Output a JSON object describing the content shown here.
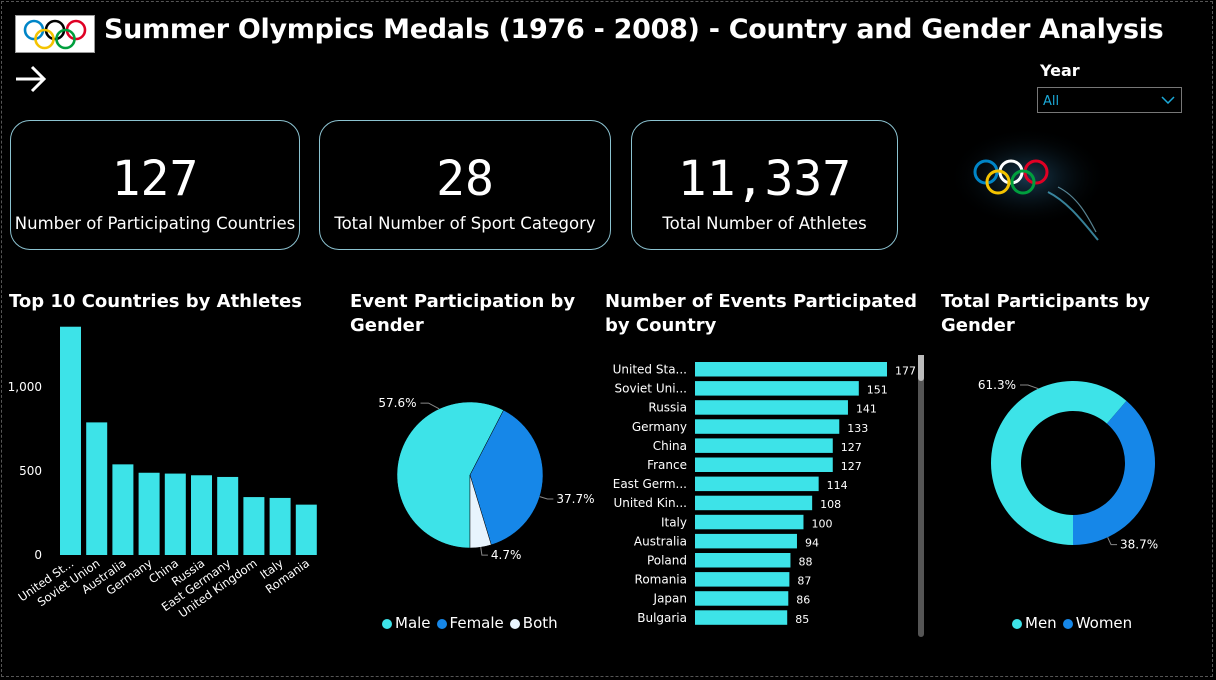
{
  "header": {
    "title": "Summer Olympics Medals (1976 - 2008) - Country and Gender Analysis"
  },
  "filter": {
    "label": "Year",
    "value": "All"
  },
  "kpis": [
    {
      "value": "127",
      "label": "Number of Participating Countries"
    },
    {
      "value": "28",
      "label": "Total Number of Sport Category"
    },
    {
      "value": "11,337",
      "label": "Total Number of Athletes"
    }
  ],
  "colors": {
    "teal": "#3de3e8",
    "blue": "#1687e8",
    "pale": "#e8f4fd",
    "olympic_rings": [
      "#0085c7",
      "#000000",
      "#df0024",
      "#f4c300",
      "#009f3d"
    ]
  },
  "chart_data": [
    {
      "type": "bar",
      "title": "Top 10 Countries by Athletes",
      "categories": [
        "United St...",
        "Soviet Union",
        "Australia",
        "Germany",
        "China",
        "Russia",
        "East Germany",
        "United Kingdom",
        "Italy",
        "Romania"
      ],
      "values": [
        1360,
        790,
        540,
        490,
        485,
        475,
        465,
        345,
        340,
        300
      ],
      "ylim": [
        0,
        1400
      ],
      "yticks": [
        0,
        500,
        1000
      ],
      "ytick_labels": [
        "0",
        "500",
        "1,000"
      ]
    },
    {
      "type": "pie",
      "title": "Event Participation by Gender",
      "categories": [
        "Male",
        "Female",
        "Both"
      ],
      "values": [
        57.6,
        37.7,
        4.7
      ],
      "labels": [
        "57.6%",
        "37.7%",
        "4.7%"
      ],
      "legend": "bottom"
    },
    {
      "type": "bar",
      "orientation": "horizontal",
      "title": "Number of Events Participated by Country",
      "categories": [
        "United Sta...",
        "Soviet Uni...",
        "Russia",
        "Germany",
        "China",
        "France",
        "East Germ...",
        "United Kin...",
        "Italy",
        "Australia",
        "Poland",
        "Romania",
        "Japan",
        "Bulgaria"
      ],
      "values": [
        177,
        151,
        141,
        133,
        127,
        127,
        114,
        108,
        100,
        94,
        88,
        87,
        86,
        85
      ]
    },
    {
      "type": "pie",
      "title": "Total Participants by Gender",
      "categories": [
        "Men",
        "Women"
      ],
      "values": [
        61.3,
        38.7
      ],
      "labels": [
        "61.3%",
        "38.7%"
      ],
      "legend": "bottom"
    }
  ]
}
